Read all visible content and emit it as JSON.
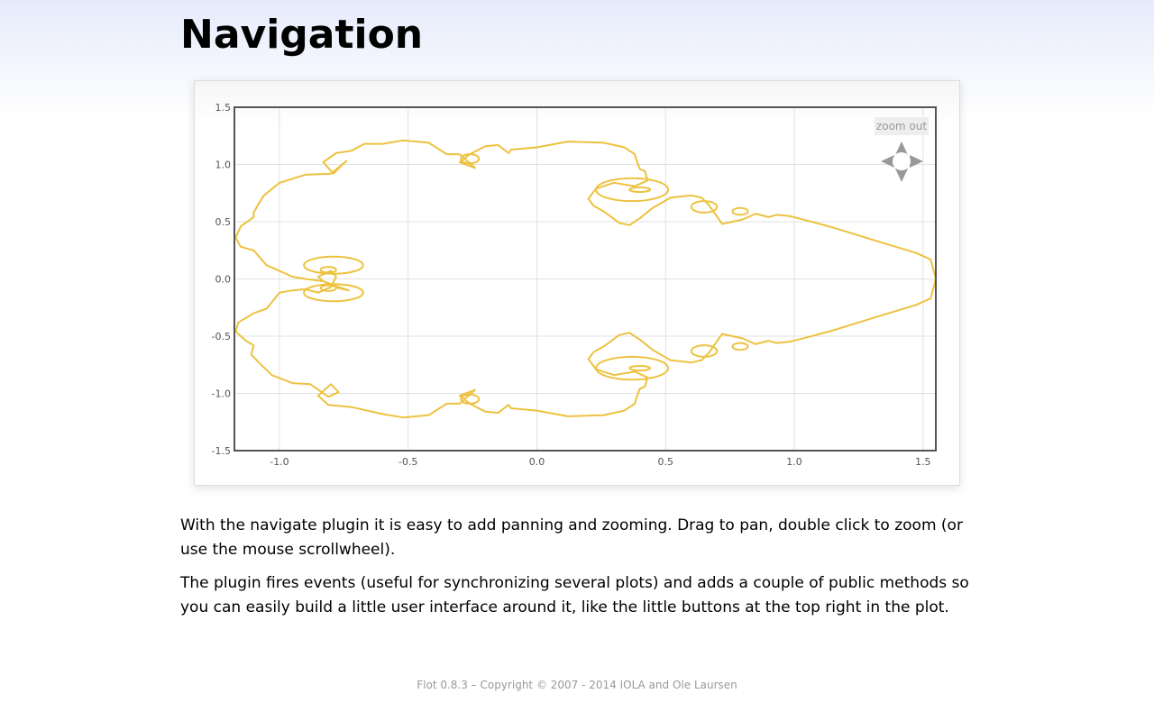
{
  "page": {
    "title": "Navigation",
    "paragraphs": [
      "With the navigate plugin it is easy to add panning and zooming. Drag to pan, double click to zoom (or use the mouse scrollwheel).",
      "The plugin fires events (useful for synchronizing several plots) and adds a couple of public methods so you can easily build a little user interface around it, like the little buttons at the top right in the plot."
    ],
    "footer": "Flot 0.8.3 – Copyright © 2007 - 2014 IOLA and Ole Laursen"
  },
  "controls": {
    "zoom_out_label": "zoom out",
    "pan_icons": [
      "pan-up-arrow-icon",
      "pan-down-arrow-icon",
      "pan-left-arrow-icon",
      "pan-right-arrow-icon"
    ]
  },
  "chart_data": {
    "type": "line",
    "xlim": [
      -1.175,
      1.55
    ],
    "ylim": [
      -1.5,
      1.5
    ],
    "xticks": [
      "-1.0",
      "-0.5",
      "0.0",
      "0.5",
      "1.0",
      "1.5"
    ],
    "yticks": [
      "1.5",
      "1.0",
      "0.5",
      "0.0",
      "-0.5",
      "-1.0",
      "-1.5"
    ],
    "xtick_values": [
      -1.0,
      -0.5,
      0.0,
      0.5,
      1.0,
      1.5
    ],
    "ytick_values": [
      1.5,
      1.0,
      0.5,
      0.0,
      -0.5,
      -1.0,
      -1.5
    ],
    "grid": true,
    "series_color": "#edc240",
    "series": [
      {
        "x": [
          1.55,
          1.53,
          1.47,
          1.35,
          1.25,
          1.15,
          1.05,
          0.98,
          0.93,
          0.9,
          0.85,
          0.8,
          0.72,
          0.67,
          0.64,
          0.6,
          0.52,
          0.45,
          0.4,
          0.36,
          0.32,
          0.26,
          0.22,
          0.2,
          0.23,
          0.3,
          0.38,
          0.43,
          0.42,
          0.4,
          0.39,
          0.38,
          0.34,
          0.26,
          0.12,
          0.0,
          -0.1,
          -0.11,
          -0.15,
          -0.2,
          -0.26,
          -0.3,
          -0.24,
          -0.3,
          -0.35,
          -0.42,
          -0.52,
          -0.6,
          -0.67,
          -0.72,
          -0.78,
          -0.83,
          -0.79,
          -0.76,
          -0.74,
          -0.8,
          -0.9,
          -1.0,
          -1.06,
          -1.08,
          -1.1,
          -1.1,
          -1.15,
          -1.17,
          -1.15,
          -1.1,
          -1.05,
          -1.0,
          -0.95,
          -0.9,
          -0.83,
          -0.77,
          -0.73,
          -0.77,
          -0.83,
          -0.85,
          -0.8,
          -0.78,
          -0.8,
          -0.85,
          -0.9,
          -0.95,
          -1.0,
          -1.05,
          -1.1,
          -1.16,
          -1.17,
          -1.13,
          -1.1,
          -1.11,
          -1.08,
          -1.03,
          -0.95,
          -0.88,
          -0.81,
          -0.77,
          -0.8,
          -0.85,
          -0.81,
          -0.72,
          -0.6,
          -0.52,
          -0.42,
          -0.35,
          -0.3,
          -0.24,
          -0.3,
          -0.26,
          -0.2,
          -0.15,
          -0.11,
          -0.1,
          0.0,
          0.12,
          0.26,
          0.34,
          0.38,
          0.39,
          0.4,
          0.42,
          0.43,
          0.38,
          0.3,
          0.23,
          0.2,
          0.22,
          0.26,
          0.32,
          0.36,
          0.4,
          0.45,
          0.52,
          0.6,
          0.64,
          0.67,
          0.72,
          0.8,
          0.85,
          0.9,
          0.93,
          0.98,
          1.05,
          1.15,
          1.25,
          1.35,
          1.47,
          1.53,
          1.55
        ],
        "y": [
          0.0,
          0.17,
          0.23,
          0.31,
          0.38,
          0.45,
          0.51,
          0.55,
          0.56,
          0.54,
          0.57,
          0.52,
          0.48,
          0.64,
          0.71,
          0.73,
          0.71,
          0.62,
          0.53,
          0.47,
          0.49,
          0.59,
          0.64,
          0.7,
          0.79,
          0.84,
          0.81,
          0.86,
          0.94,
          0.96,
          1.02,
          1.09,
          1.15,
          1.19,
          1.2,
          1.15,
          1.13,
          1.1,
          1.17,
          1.16,
          1.09,
          1.02,
          0.97,
          1.09,
          1.09,
          1.19,
          1.21,
          1.18,
          1.18,
          1.12,
          1.1,
          1.02,
          0.92,
          0.99,
          1.03,
          0.92,
          0.91,
          0.84,
          0.73,
          0.66,
          0.58,
          0.54,
          0.46,
          0.36,
          0.28,
          0.25,
          0.12,
          0.07,
          0.02,
          0.0,
          -0.02,
          -0.07,
          -0.1,
          -0.08,
          -0.02,
          0.02,
          0.07,
          0.02,
          -0.07,
          -0.12,
          -0.09,
          -0.1,
          -0.12,
          -0.26,
          -0.3,
          -0.38,
          -0.46,
          -0.54,
          -0.58,
          -0.66,
          -0.73,
          -0.84,
          -0.91,
          -0.92,
          -1.03,
          -0.99,
          -0.92,
          -1.02,
          -1.1,
          -1.12,
          -1.18,
          -1.21,
          -1.19,
          -1.09,
          -1.09,
          -0.97,
          -1.02,
          -1.09,
          -1.16,
          -1.17,
          -1.1,
          -1.13,
          -1.15,
          -1.2,
          -1.19,
          -1.15,
          -1.09,
          -1.02,
          -0.96,
          -0.94,
          -0.86,
          -0.81,
          -0.84,
          -0.79,
          -0.7,
          -0.64,
          -0.59,
          -0.49,
          -0.47,
          -0.53,
          -0.62,
          -0.71,
          -0.73,
          -0.71,
          -0.64,
          -0.48,
          -0.52,
          -0.57,
          -0.54,
          -0.56,
          -0.55,
          -0.51,
          -0.45,
          -0.38,
          -0.31,
          -0.23,
          -0.17,
          0.0
        ]
      }
    ]
  }
}
